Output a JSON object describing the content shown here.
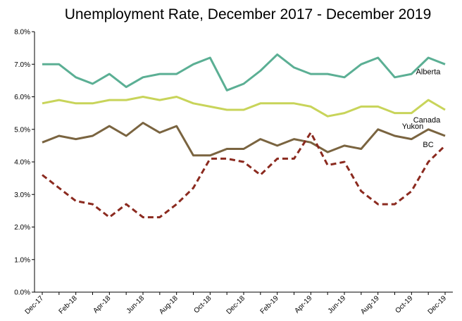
{
  "chart_data": {
    "type": "line",
    "title": "Unemployment Rate, December 2017 - December 2019",
    "xlabel": "",
    "ylabel": "",
    "ylim": [
      0,
      8
    ],
    "yticks": [
      "0.0%",
      "1.0%",
      "2.0%",
      "3.0%",
      "4.0%",
      "5.0%",
      "6.0%",
      "7.0%",
      "8.0%"
    ],
    "y_tick_values": [
      0,
      1,
      2,
      3,
      4,
      5,
      6,
      7,
      8
    ],
    "grid": false,
    "legend": "inline labels at right end of lines",
    "x": [
      "Dec-17",
      "Jan-18",
      "Feb-18",
      "Mar-18",
      "Apr-18",
      "May-18",
      "Jun-18",
      "Jul-18",
      "Aug-18",
      "Sep-18",
      "Oct-18",
      "Nov-18",
      "Dec-18",
      "Jan-19",
      "Feb-19",
      "Mar-19",
      "Apr-19",
      "May-19",
      "Jun-19",
      "Jul-19",
      "Aug-19",
      "Sep-19",
      "Oct-19",
      "Nov-19",
      "Dec-19"
    ],
    "x_tick_labels": [
      "Dec-17",
      "Feb-18",
      "Apr-18",
      "Jun-18",
      "Aug-18",
      "Oct-18",
      "Dec-18",
      "Feb-19",
      "Apr-19",
      "Jun-19",
      "Aug-19",
      "Oct-19",
      "Dec-19"
    ],
    "series": [
      {
        "name": "Alberta",
        "color": "#5BAF94",
        "dashed": false,
        "values": [
          7.0,
          7.0,
          6.6,
          6.4,
          6.7,
          6.3,
          6.6,
          6.7,
          6.7,
          7.0,
          7.2,
          6.2,
          6.4,
          6.8,
          7.3,
          6.9,
          6.7,
          6.7,
          6.6,
          7.0,
          7.2,
          6.6,
          6.7,
          7.2,
          7.0
        ]
      },
      {
        "name": "Canada",
        "color": "#C8D45A",
        "dashed": false,
        "values": [
          5.8,
          5.9,
          5.8,
          5.8,
          5.9,
          5.9,
          6.0,
          5.9,
          6.0,
          5.8,
          5.7,
          5.6,
          5.6,
          5.8,
          5.8,
          5.8,
          5.7,
          5.4,
          5.5,
          5.7,
          5.7,
          5.5,
          5.5,
          5.9,
          5.6
        ]
      },
      {
        "name": "BC",
        "color": "#7A6440",
        "dashed": false,
        "values": [
          4.6,
          4.8,
          4.7,
          4.8,
          5.1,
          4.8,
          5.2,
          4.9,
          5.1,
          4.2,
          4.2,
          4.4,
          4.4,
          4.7,
          4.5,
          4.7,
          4.6,
          4.3,
          4.5,
          4.4,
          5.0,
          4.8,
          4.7,
          5.0,
          4.8
        ]
      },
      {
        "name": "Yukon",
        "color": "#8B2A1F",
        "dashed": true,
        "values": [
          3.6,
          3.2,
          2.8,
          2.7,
          2.3,
          2.7,
          2.3,
          2.3,
          2.7,
          3.2,
          4.1,
          4.1,
          4.0,
          3.6,
          4.1,
          4.1,
          4.9,
          3.9,
          4.0,
          3.1,
          2.7,
          2.7,
          3.1,
          4.0,
          4.5
        ]
      }
    ]
  }
}
